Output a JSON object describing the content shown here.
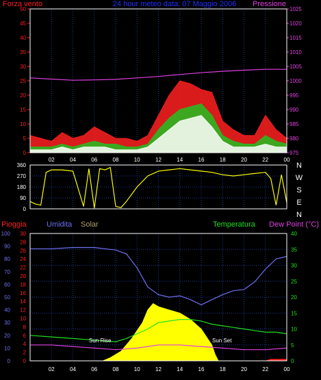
{
  "chart_data": [
    {
      "type": "line",
      "title": "24 hour meteo data: 07 Maggio 2006",
      "left_label": "Forza vento",
      "right_label": "Pressione",
      "x_ticks": [
        "02",
        "04",
        "06",
        "08",
        "10",
        "12",
        "14",
        "16",
        "18",
        "20",
        "22",
        "00"
      ],
      "y_left_ticks": [
        "0",
        "5",
        "10",
        "15",
        "20",
        "25",
        "30",
        "35",
        "40",
        "45",
        "50"
      ],
      "y_right_ticks": [
        "975",
        "980",
        "985",
        "990",
        "995",
        "1000",
        "1005",
        "1010",
        "1015",
        "1020",
        "1025"
      ],
      "ylim_left": [
        0,
        50
      ],
      "ylim_right": [
        975,
        1025
      ],
      "series": [
        {
          "color": "#ff2020",
          "hours": [
            0,
            1,
            2,
            3,
            4,
            5,
            6,
            7,
            8,
            9,
            10,
            11,
            12,
            13,
            14,
            15,
            16,
            17,
            18,
            19,
            20,
            21,
            22,
            23,
            24
          ],
          "values": [
            6,
            5,
            4,
            7,
            5,
            6,
            9,
            7,
            5,
            5,
            4,
            6,
            13,
            20,
            25,
            24,
            22,
            21,
            11,
            8,
            6,
            6,
            13,
            8,
            5
          ]
        },
        {
          "color": "#20c020",
          "hours": [
            0,
            1,
            2,
            3,
            4,
            5,
            6,
            7,
            8,
            9,
            10,
            11,
            12,
            13,
            14,
            15,
            16,
            17,
            18,
            19,
            20,
            21,
            22,
            23,
            24
          ],
          "values": [
            2,
            2,
            2,
            3,
            2,
            3,
            4,
            3,
            3,
            2,
            2,
            3,
            8,
            12,
            15,
            16,
            17,
            13,
            6,
            4,
            3,
            3,
            6,
            4,
            3
          ]
        },
        {
          "color": "#ffffff",
          "hours": [
            0,
            1,
            2,
            3,
            4,
            5,
            6,
            7,
            8,
            9,
            10,
            11,
            12,
            13,
            14,
            15,
            16,
            17,
            18,
            19,
            20,
            21,
            22,
            23,
            24
          ],
          "values": [
            1,
            1,
            1,
            2,
            1,
            2,
            2,
            2,
            1,
            1,
            1,
            2,
            5,
            8,
            11,
            12,
            13,
            9,
            4,
            2,
            2,
            2,
            3,
            2,
            2
          ]
        },
        {
          "color": "#e040e0",
          "axis": "right",
          "hours": [
            0,
            2,
            4,
            6,
            8,
            10,
            12,
            14,
            16,
            18,
            20,
            22,
            24
          ],
          "values": [
            1001,
            1000.6,
            1000.2,
            1000.3,
            1000.5,
            1001,
            1001.5,
            1002.2,
            1002.8,
            1003.3,
            1003.7,
            1004,
            1004
          ]
        }
      ]
    },
    {
      "type": "line",
      "direction_labels": [
        "N",
        "W",
        "S",
        "E",
        "N"
      ],
      "y_ticks": [
        "0",
        "90",
        "180",
        "270",
        "360"
      ],
      "ylim": [
        0,
        360
      ],
      "x_ticks": [
        "02",
        "04",
        "06",
        "08",
        "10",
        "12",
        "14",
        "16",
        "18",
        "20",
        "22",
        "00"
      ],
      "series": [
        {
          "color": "#ffff00",
          "hours": [
            0,
            0.5,
            1,
            1.5,
            2,
            3,
            4,
            5,
            5.5,
            6,
            6.5,
            7,
            7.5,
            8,
            8.5,
            9,
            10,
            11,
            12,
            13,
            14,
            15,
            16,
            17,
            18,
            19,
            20,
            21,
            22,
            22.5,
            23,
            23.5,
            24
          ],
          "values": [
            60,
            40,
            30,
            300,
            320,
            320,
            310,
            20,
            330,
            5,
            330,
            320,
            340,
            20,
            10,
            60,
            180,
            270,
            310,
            320,
            330,
            320,
            310,
            300,
            280,
            270,
            280,
            290,
            300,
            250,
            30,
            280,
            50
          ]
        }
      ]
    },
    {
      "type": "area",
      "labels": {
        "rain": "Pioggia",
        "humidity": "Umidita",
        "solar": "Solar",
        "temperature": "Temperatura",
        "dewpoint": "Dew Point (°C)"
      },
      "annotations": {
        "sunrise": "Sun Rise",
        "sunset": "Sun Set"
      },
      "x_ticks": [
        "02",
        "04",
        "06",
        "08",
        "10",
        "12",
        "14",
        "16",
        "18",
        "20",
        "22",
        "00"
      ],
      "y_left_ticks": [
        "0",
        "10",
        "20",
        "30",
        "40",
        "50",
        "60",
        "70",
        "80",
        "90",
        "100"
      ],
      "y_mid_ticks": [
        "0",
        "2",
        "4",
        "6",
        "8",
        "10",
        "12",
        "14",
        "16",
        "18",
        "20",
        "22",
        "24",
        "26",
        "28",
        "30"
      ],
      "y_right_ticks": [
        "0",
        "5",
        "10",
        "15",
        "20",
        "25",
        "30",
        "35",
        "40"
      ],
      "ylim_humidity": [
        0,
        100
      ],
      "ylim_temperature": [
        0,
        40
      ],
      "series": [
        {
          "name": "Umidita",
          "color": "#7070f0",
          "hours": [
            0,
            2,
            4,
            6,
            8,
            9,
            10,
            11,
            12,
            13,
            14,
            15,
            16,
            17,
            18,
            19,
            20,
            21,
            22,
            23,
            24
          ],
          "values": [
            88,
            88,
            89,
            89,
            87,
            84,
            73,
            58,
            52,
            50,
            51,
            48,
            44,
            48,
            52,
            55,
            56,
            62,
            72,
            80,
            82
          ]
        },
        {
          "name": "Temperatura",
          "color": "#20e020",
          "hours": [
            0,
            2,
            4,
            6,
            8,
            9,
            10,
            11,
            12,
            13,
            14,
            15,
            16,
            17,
            18,
            19,
            20,
            21,
            22,
            23,
            24
          ],
          "values": [
            8,
            7.5,
            7,
            6.5,
            6,
            7,
            8.5,
            10,
            12,
            12.5,
            13,
            13,
            12.5,
            11.5,
            11,
            10.5,
            10,
            9.5,
            9,
            9,
            8.5
          ]
        },
        {
          "name": "Dew Point",
          "color": "#e040e0",
          "hours": [
            0,
            2,
            4,
            6,
            8,
            10,
            12,
            14,
            16,
            18,
            20,
            22,
            24
          ],
          "values": [
            5,
            5,
            4.5,
            4,
            3.5,
            4,
            5,
            5,
            4.5,
            4,
            3.5,
            3.5,
            4
          ]
        },
        {
          "name": "Solar",
          "color": "#ffff00",
          "hours": [
            6.8,
            7.5,
            8.5,
            9.5,
            10.5,
            11,
            11.5,
            12,
            13,
            14,
            14.5,
            15,
            16,
            17,
            17.3,
            17.6
          ],
          "values": [
            0,
            1,
            3,
            7,
            12,
            16,
            18,
            17,
            16,
            15,
            14,
            13,
            10,
            5,
            2,
            0
          ]
        },
        {
          "name": "Pioggia",
          "color": "#ff2020",
          "hours": [
            0,
            22,
            22.5,
            24
          ],
          "values": [
            0,
            0,
            0.5,
            0.5
          ]
        }
      ]
    }
  ]
}
